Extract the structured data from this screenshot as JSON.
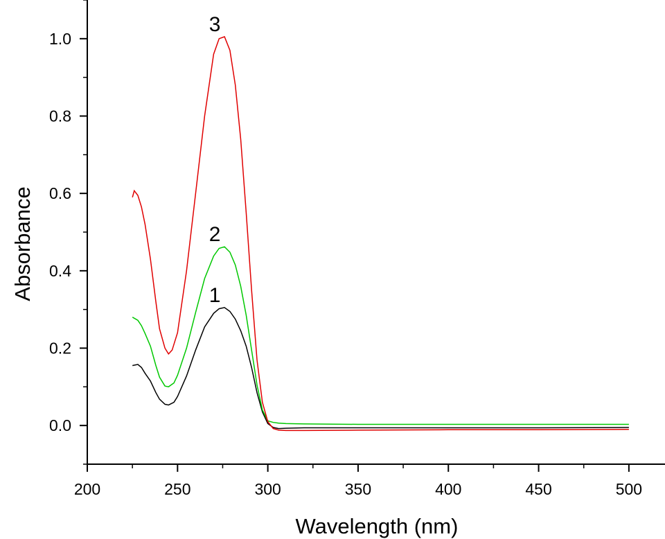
{
  "chart_data": {
    "type": "line",
    "title": "",
    "xlabel": "Wavelength (nm)",
    "ylabel": "Absorbance",
    "xlim": [
      200,
      520
    ],
    "ylim": [
      -0.1,
      1.1
    ],
    "x_ticks": [
      200,
      250,
      300,
      350,
      400,
      450,
      500
    ],
    "x_tick_labels": [
      "200",
      "250",
      "300",
      "350",
      "400",
      "450",
      "500"
    ],
    "y_ticks": [
      0.0,
      0.2,
      0.4,
      0.6,
      0.8,
      1.0
    ],
    "y_tick_labels": [
      "0.0",
      "0.2",
      "0.4",
      "0.6",
      "0.8",
      "1.0"
    ],
    "grid": false,
    "legend": "none",
    "series": [
      {
        "name": "1",
        "color": "#000000",
        "x": [
          225,
          228,
          230,
          232,
          235,
          238,
          240,
          243,
          245,
          248,
          250,
          255,
          260,
          265,
          270,
          273,
          276,
          279,
          282,
          285,
          288,
          291,
          294,
          297,
          300,
          303,
          306,
          310,
          320,
          350,
          400,
          450,
          500
        ],
        "y": [
          0.155,
          0.158,
          0.15,
          0.135,
          0.115,
          0.085,
          0.068,
          0.055,
          0.053,
          0.06,
          0.075,
          0.128,
          0.195,
          0.255,
          0.29,
          0.302,
          0.305,
          0.295,
          0.275,
          0.245,
          0.205,
          0.15,
          0.085,
          0.035,
          0.005,
          -0.005,
          -0.008,
          -0.007,
          -0.006,
          -0.006,
          -0.006,
          -0.006,
          -0.005
        ]
      },
      {
        "name": "2",
        "color": "#00c800",
        "x": [
          225,
          228,
          230,
          232,
          235,
          238,
          240,
          243,
          245,
          248,
          250,
          255,
          260,
          265,
          270,
          273,
          276,
          279,
          282,
          285,
          288,
          291,
          294,
          297,
          300,
          303,
          306,
          310,
          320,
          350,
          400,
          450,
          500
        ],
        "y": [
          0.28,
          0.272,
          0.258,
          0.238,
          0.205,
          0.155,
          0.125,
          0.102,
          0.1,
          0.11,
          0.13,
          0.2,
          0.292,
          0.38,
          0.438,
          0.458,
          0.462,
          0.448,
          0.415,
          0.36,
          0.285,
          0.195,
          0.105,
          0.04,
          0.012,
          0.008,
          0.006,
          0.005,
          0.004,
          0.003,
          0.003,
          0.003,
          0.003
        ]
      },
      {
        "name": "3",
        "color": "#e00000",
        "x": [
          225,
          226,
          228,
          230,
          232,
          235,
          238,
          240,
          243,
          245,
          247,
          250,
          255,
          260,
          265,
          270,
          273,
          276,
          279,
          282,
          285,
          288,
          291,
          294,
          297,
          300,
          303,
          306,
          310,
          320,
          350,
          400,
          450,
          500
        ],
        "y": [
          0.59,
          0.607,
          0.595,
          0.565,
          0.52,
          0.43,
          0.32,
          0.25,
          0.2,
          0.185,
          0.195,
          0.24,
          0.4,
          0.6,
          0.8,
          0.96,
          1.0,
          1.005,
          0.97,
          0.88,
          0.74,
          0.55,
          0.35,
          0.17,
          0.06,
          0.01,
          -0.008,
          -0.012,
          -0.013,
          -0.013,
          -0.012,
          -0.011,
          -0.011,
          -0.01
        ]
      }
    ]
  }
}
